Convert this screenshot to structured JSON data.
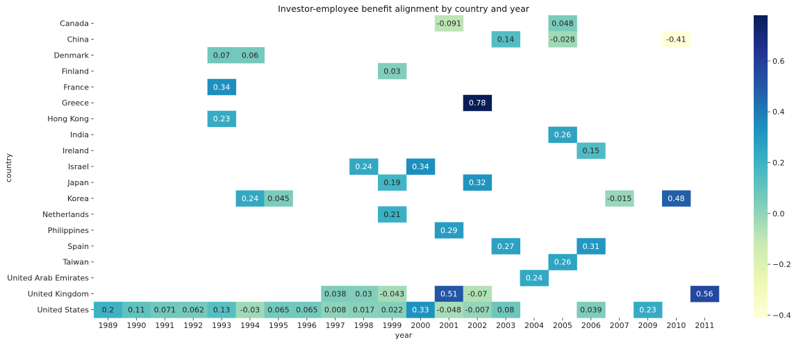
{
  "chart_data": {
    "type": "heatmap",
    "title": "Investor-employee benefit alignment by country and year",
    "xlabel": "year",
    "ylabel": "country",
    "colormap": "YlGnBu",
    "colorbar": {
      "min": -0.41,
      "max": 0.78,
      "ticks": [
        -0.4,
        -0.2,
        0.0,
        0.2,
        0.4,
        0.6
      ],
      "tick_labels": [
        "−0.4",
        "−0.2",
        "0.0",
        "0.2",
        "0.4",
        "0.6"
      ]
    },
    "x_categories": [
      "1989",
      "1990",
      "1991",
      "1992",
      "1993",
      "1994",
      "1995",
      "1996",
      "1997",
      "1998",
      "1999",
      "2000",
      "2001",
      "2002",
      "2003",
      "2004",
      "2005",
      "2006",
      "2007",
      "2009",
      "2010",
      "2011"
    ],
    "y_categories": [
      "Canada",
      "China",
      "Denmark",
      "Finland",
      "France",
      "Greece",
      "Hong Kong",
      "India",
      "Ireland",
      "Israel",
      "Japan",
      "Korea",
      "Netherlands",
      "Philippines",
      "Spain",
      "Taiwan",
      "United Arab Emirates",
      "United Kingdom",
      "United States"
    ],
    "cells": [
      {
        "country": "Canada",
        "year": "2001",
        "value": -0.091,
        "label": "-0.091"
      },
      {
        "country": "Canada",
        "year": "2005",
        "value": 0.048,
        "label": "0.048"
      },
      {
        "country": "China",
        "year": "2003",
        "value": 0.14,
        "label": "0.14"
      },
      {
        "country": "China",
        "year": "2005",
        "value": -0.028,
        "label": "-0.028"
      },
      {
        "country": "China",
        "year": "2010",
        "value": -0.41,
        "label": "-0.41"
      },
      {
        "country": "Denmark",
        "year": "1993",
        "value": 0.07,
        "label": "0.07"
      },
      {
        "country": "Denmark",
        "year": "1994",
        "value": 0.06,
        "label": "0.06"
      },
      {
        "country": "Finland",
        "year": "1999",
        "value": 0.03,
        "label": "0.03"
      },
      {
        "country": "France",
        "year": "1993",
        "value": 0.34,
        "label": "0.34"
      },
      {
        "country": "Greece",
        "year": "2002",
        "value": 0.78,
        "label": "0.78"
      },
      {
        "country": "Hong Kong",
        "year": "1993",
        "value": 0.23,
        "label": "0.23"
      },
      {
        "country": "India",
        "year": "2005",
        "value": 0.26,
        "label": "0.26"
      },
      {
        "country": "Ireland",
        "year": "2006",
        "value": 0.15,
        "label": "0.15"
      },
      {
        "country": "Israel",
        "year": "1998",
        "value": 0.24,
        "label": "0.24"
      },
      {
        "country": "Israel",
        "year": "2000",
        "value": 0.34,
        "label": "0.34"
      },
      {
        "country": "Japan",
        "year": "1999",
        "value": 0.19,
        "label": "0.19"
      },
      {
        "country": "Japan",
        "year": "2002",
        "value": 0.32,
        "label": "0.32"
      },
      {
        "country": "Korea",
        "year": "1994",
        "value": 0.24,
        "label": "0.24"
      },
      {
        "country": "Korea",
        "year": "1995",
        "value": 0.045,
        "label": "0.045"
      },
      {
        "country": "Korea",
        "year": "2007",
        "value": -0.015,
        "label": "-0.015"
      },
      {
        "country": "Korea",
        "year": "2010",
        "value": 0.48,
        "label": "0.48"
      },
      {
        "country": "Netherlands",
        "year": "1999",
        "value": 0.21,
        "label": "0.21"
      },
      {
        "country": "Philippines",
        "year": "2001",
        "value": 0.29,
        "label": "0.29"
      },
      {
        "country": "Spain",
        "year": "2003",
        "value": 0.27,
        "label": "0.27"
      },
      {
        "country": "Spain",
        "year": "2006",
        "value": 0.31,
        "label": "0.31"
      },
      {
        "country": "Taiwan",
        "year": "2005",
        "value": 0.26,
        "label": "0.26"
      },
      {
        "country": "United Arab Emirates",
        "year": "2004",
        "value": 0.24,
        "label": "0.24"
      },
      {
        "country": "United Kingdom",
        "year": "1997",
        "value": 0.038,
        "label": "0.038"
      },
      {
        "country": "United Kingdom",
        "year": "1998",
        "value": 0.03,
        "label": "0.03"
      },
      {
        "country": "United Kingdom",
        "year": "1999",
        "value": -0.043,
        "label": "-0.043"
      },
      {
        "country": "United Kingdom",
        "year": "2001",
        "value": 0.51,
        "label": "0.51"
      },
      {
        "country": "United Kingdom",
        "year": "2002",
        "value": -0.07,
        "label": "-0.07"
      },
      {
        "country": "United Kingdom",
        "year": "2011",
        "value": 0.56,
        "label": "0.56"
      },
      {
        "country": "United States",
        "year": "1989",
        "value": 0.2,
        "label": "0.2"
      },
      {
        "country": "United States",
        "year": "1990",
        "value": 0.11,
        "label": "0.11"
      },
      {
        "country": "United States",
        "year": "1991",
        "value": 0.071,
        "label": "0.071"
      },
      {
        "country": "United States",
        "year": "1992",
        "value": 0.062,
        "label": "0.062"
      },
      {
        "country": "United States",
        "year": "1993",
        "value": 0.13,
        "label": "0.13"
      },
      {
        "country": "United States",
        "year": "1994",
        "value": -0.03,
        "label": "-0.03"
      },
      {
        "country": "United States",
        "year": "1995",
        "value": 0.065,
        "label": "0.065"
      },
      {
        "country": "United States",
        "year": "1996",
        "value": 0.065,
        "label": "0.065"
      },
      {
        "country": "United States",
        "year": "1997",
        "value": 0.008,
        "label": "0.008"
      },
      {
        "country": "United States",
        "year": "1998",
        "value": 0.017,
        "label": "0.017"
      },
      {
        "country": "United States",
        "year": "1999",
        "value": 0.022,
        "label": "0.022"
      },
      {
        "country": "United States",
        "year": "2000",
        "value": 0.33,
        "label": "0.33"
      },
      {
        "country": "United States",
        "year": "2001",
        "value": -0.048,
        "label": "-0.048"
      },
      {
        "country": "United States",
        "year": "2002",
        "value": -0.007,
        "label": "-0.007"
      },
      {
        "country": "United States",
        "year": "2003",
        "value": 0.08,
        "label": "0.08"
      },
      {
        "country": "United States",
        "year": "2006",
        "value": 0.039,
        "label": "0.039"
      },
      {
        "country": "United States",
        "year": "2009",
        "value": 0.23,
        "label": "0.23"
      }
    ]
  }
}
